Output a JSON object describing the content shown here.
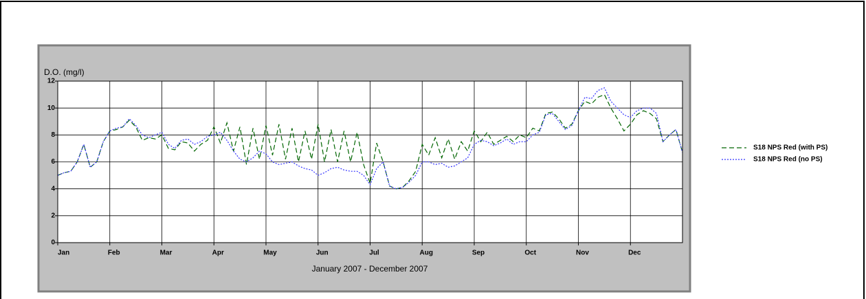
{
  "chart_data": {
    "type": "line",
    "ylabel": "D.O. (mg/l)",
    "xlabel": "January 2007 - December 2007",
    "categories": [
      "Jan",
      null,
      null,
      null,
      null,
      null,
      null,
      null,
      "Feb",
      null,
      null,
      null,
      null,
      null,
      null,
      null,
      "Mar",
      null,
      null,
      null,
      null,
      null,
      null,
      null,
      "Apr",
      null,
      null,
      null,
      null,
      null,
      null,
      null,
      "May",
      null,
      null,
      null,
      null,
      null,
      null,
      null,
      "Jun",
      null,
      null,
      null,
      null,
      null,
      null,
      null,
      "Jul",
      null,
      null,
      null,
      null,
      null,
      null,
      null,
      "Aug",
      null,
      null,
      null,
      null,
      null,
      null,
      null,
      "Sep",
      null,
      null,
      null,
      null,
      null,
      null,
      null,
      "Oct",
      null,
      null,
      null,
      null,
      null,
      null,
      null,
      "Nov",
      null,
      null,
      null,
      null,
      null,
      null,
      null,
      "Dec",
      null,
      null,
      null,
      null,
      null,
      null,
      null,
      null
    ],
    "series": [
      {
        "name": "S18 NPS Red (with PS)",
        "color": "#006400",
        "dash": "dashed",
        "values": [
          5.0,
          5.2,
          5.3,
          6.0,
          7.3,
          5.6,
          6.0,
          7.5,
          8.3,
          8.4,
          8.6,
          9.1,
          8.6,
          7.6,
          7.8,
          7.7,
          8.0,
          7.0,
          6.9,
          7.5,
          7.4,
          6.8,
          7.3,
          7.6,
          8.6,
          7.4,
          8.9,
          6.8,
          8.6,
          5.8,
          8.5,
          6.2,
          8.7,
          6.5,
          8.8,
          6.2,
          8.5,
          6.0,
          8.3,
          6.2,
          8.8,
          6.0,
          8.4,
          6.0,
          8.3,
          6.0,
          8.2,
          5.8,
          4.4,
          7.4,
          6.0,
          4.2,
          4.0,
          4.1,
          4.6,
          5.3,
          7.3,
          6.5,
          7.8,
          6.3,
          7.7,
          6.2,
          7.5,
          6.8,
          8.3,
          7.5,
          8.2,
          7.3,
          7.6,
          7.9,
          7.5,
          8.0,
          7.8,
          8.5,
          8.3,
          9.6,
          9.7,
          9.2,
          8.5,
          8.8,
          9.8,
          10.5,
          10.3,
          10.8,
          11.0,
          10.0,
          9.2,
          8.3,
          8.8,
          9.5,
          9.8,
          9.6,
          9.2,
          7.5,
          8.0,
          8.4,
          6.7
        ]
      },
      {
        "name": "S18 NPS Red (no PS)",
        "color": "#3333ff",
        "dash": "dotted",
        "values": [
          5.0,
          5.2,
          5.3,
          6.0,
          7.3,
          5.6,
          6.0,
          7.5,
          8.3,
          8.5,
          8.6,
          9.2,
          8.7,
          8.0,
          7.8,
          8.0,
          8.2,
          7.3,
          7.0,
          7.6,
          7.7,
          7.3,
          7.5,
          7.9,
          8.0,
          8.2,
          7.6,
          6.8,
          6.2,
          6.0,
          6.3,
          6.8,
          6.6,
          6.0,
          5.8,
          5.9,
          6.0,
          5.7,
          5.5,
          5.4,
          5.0,
          5.2,
          5.5,
          5.6,
          5.4,
          5.3,
          5.3,
          5.0,
          4.3,
          5.5,
          6.0,
          4.2,
          4.0,
          4.1,
          4.5,
          5.0,
          6.0,
          6.0,
          5.8,
          5.9,
          5.6,
          5.7,
          6.0,
          6.3,
          7.3,
          7.6,
          7.5,
          7.2,
          7.4,
          7.7,
          7.3,
          7.5,
          7.5,
          8.0,
          8.2,
          9.5,
          9.6,
          9.0,
          8.4,
          8.7,
          9.8,
          10.8,
          10.7,
          11.3,
          11.5,
          10.5,
          10.0,
          9.5,
          9.3,
          9.8,
          10.0,
          10.0,
          9.6,
          7.5,
          8.0,
          8.4,
          6.7
        ]
      }
    ],
    "ylim": [
      0,
      12
    ],
    "yticks": [
      0,
      2,
      4,
      6,
      8,
      10,
      12
    ],
    "grid": true,
    "legend": "right"
  }
}
